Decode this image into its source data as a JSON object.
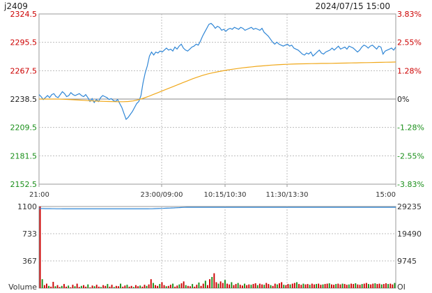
{
  "header": {
    "symbol": "j2409",
    "datetime": "2024/07/15 15:00"
  },
  "colors": {
    "up": "#cc0000",
    "down": "#1a8f1a",
    "price_line": "#2f86d6",
    "avg_line": "#f0a81a",
    "oi_line": "#2f86d6",
    "grid": "#bcbcbc",
    "frame": "#9a9a9a",
    "text": "#333333"
  },
  "chart_data": [
    {
      "type": "line",
      "name": "intraday price",
      "x_ticks": [
        "21:00",
        "23:00/09:00",
        "10:15/10:30",
        "11:30/13:30",
        "15:00"
      ],
      "y_ticks_left": [
        "2324.5",
        "2295.5",
        "2267.5",
        "2238.5",
        "2209.5",
        "2181.5",
        "2152.5"
      ],
      "y_ticks_right": [
        "3.83%",
        "2.55%",
        "1.28%",
        "0%",
        "-1.28%",
        "-2.55%",
        "-3.83%"
      ],
      "ylim": [
        2152.5,
        2324.5
      ],
      "reference_price": 2238.5,
      "series": [
        {
          "values": [
            2243,
            2241,
            2238,
            2240,
            2242,
            2240,
            2243,
            2244,
            2241,
            2240,
            2243,
            2246,
            2244,
            2241,
            2242,
            2245,
            2243,
            2242,
            2243,
            2244,
            2242,
            2241,
            2243,
            2240,
            2236,
            2239,
            2235,
            2238,
            2236,
            2240,
            2242,
            2241,
            2240,
            2238,
            2239,
            2237,
            2236,
            2238,
            2234,
            2230,
            2224,
            2218,
            2220,
            2223,
            2226,
            2230,
            2234,
            2236,
            2242,
            2255,
            2265,
            2272,
            2282,
            2286,
            2283,
            2286,
            2285,
            2287,
            2286,
            2288,
            2290,
            2288,
            2289,
            2287,
            2291,
            2289,
            2292,
            2294,
            2290,
            2288,
            2287,
            2289,
            2291,
            2292,
            2294,
            2293,
            2297,
            2302,
            2306,
            2310,
            2314,
            2315,
            2313,
            2310,
            2312,
            2311,
            2308,
            2309,
            2307,
            2309,
            2310,
            2309,
            2311,
            2310,
            2309,
            2311,
            2310,
            2308,
            2309,
            2310,
            2311,
            2309,
            2310,
            2309,
            2308,
            2310,
            2306,
            2304,
            2302,
            2299,
            2296,
            2294,
            2296,
            2294,
            2293,
            2292,
            2293,
            2294,
            2292,
            2293,
            2290,
            2289,
            2288,
            2286,
            2284,
            2283,
            2285,
            2284,
            2286,
            2282,
            2284,
            2286,
            2288,
            2285,
            2284,
            2286,
            2287,
            2288,
            2290,
            2288,
            2290,
            2292,
            2289,
            2290,
            2291,
            2289,
            2292,
            2291,
            2290,
            2288,
            2286,
            2288,
            2291,
            2293,
            2292,
            2290,
            2292,
            2293,
            2291,
            2289,
            2292,
            2291,
            2284,
            2287,
            2288,
            2289,
            2290,
            2288,
            2291
          ]
        },
        {
          "values": [
            2238.5,
            2238.5,
            2238.5,
            2238.5,
            2238.5,
            2238.3,
            2238.1,
            2237.8,
            2237.5,
            2237.2,
            2236.9,
            2236.6,
            2236.4,
            2236.2,
            2236.0,
            2235.9,
            2235.8,
            2235.8,
            2236.0,
            2236.6,
            2237.7,
            2239.2,
            2241.0,
            2243.0,
            2245.0,
            2247.0,
            2249.0,
            2251.0,
            2253.0,
            2255.0,
            2257.0,
            2259.0,
            2260.8,
            2262.4,
            2263.8,
            2265.0,
            2266.0,
            2267.0,
            2267.8,
            2268.6,
            2269.3,
            2270.0,
            2270.6,
            2271.1,
            2271.6,
            2272.0,
            2272.4,
            2272.8,
            2273.1,
            2273.4,
            2273.6,
            2273.8,
            2274.0,
            2274.1,
            2274.2,
            2274.3,
            2274.4,
            2274.5,
            2274.5,
            2274.6,
            2274.7,
            2274.8,
            2274.9,
            2275.0,
            2275.1,
            2275.2,
            2275.3,
            2275.4,
            2275.5,
            2275.6,
            2275.7,
            2275.8,
            2275.9
          ]
        }
      ]
    },
    {
      "type": "bar",
      "name": "Volume",
      "label_left": "Volume",
      "label_right": "OI",
      "y_ticks_left": [
        "1100",
        "733",
        "367"
      ],
      "y_ticks_right": [
        "29235",
        "19490",
        "9745"
      ],
      "ylim": [
        0,
        1100
      ],
      "volume": [
        1100,
        120,
        40,
        60,
        30,
        20,
        85,
        25,
        40,
        15,
        30,
        55,
        20,
        35,
        10,
        45,
        25,
        60,
        15,
        30,
        40,
        20,
        50,
        10,
        35,
        25,
        45,
        20,
        15,
        40,
        30,
        55,
        20,
        45,
        15,
        30,
        25,
        60,
        20,
        35,
        45,
        20,
        30,
        15,
        40,
        25,
        35,
        20,
        45,
        30,
        50,
        120,
        70,
        40,
        30,
        55,
        80,
        40,
        25,
        30,
        45,
        60,
        20,
        35,
        50,
        65,
        90,
        40,
        30,
        25,
        55,
        20,
        45,
        75,
        30,
        60,
        100,
        40,
        120,
        150,
        200,
        80,
        60,
        90,
        70,
        110,
        60,
        50,
        80,
        40,
        55,
        70,
        45,
        35,
        60,
        40,
        50,
        45,
        55,
        65,
        40,
        60,
        50,
        45,
        70,
        55,
        40,
        30,
        60,
        50,
        65,
        80,
        45,
        40,
        55,
        50,
        60,
        70,
        80,
        55,
        45,
        60,
        50,
        55,
        45,
        60,
        50,
        55,
        60,
        45,
        50,
        55,
        60,
        65,
        50,
        45,
        55,
        60,
        50,
        60,
        55,
        45,
        50,
        60,
        55,
        65,
        50,
        45,
        55,
        60,
        70,
        55,
        50,
        60,
        65,
        55,
        60,
        50,
        55,
        65,
        55,
        60,
        50,
        70
      ],
      "open_interest": [
        28550,
        28510,
        28480,
        28470,
        28460,
        28450,
        28440,
        28430,
        28420,
        28410,
        28400,
        28395,
        28390,
        28385,
        28380,
        28380,
        28380,
        28380,
        28380,
        28380,
        28380,
        28380,
        28380,
        28380,
        28380,
        28380,
        28380,
        28380,
        28380,
        28380,
        28380,
        28380,
        28380,
        28380,
        28380,
        28380,
        28380,
        28380,
        28380,
        28380,
        28380,
        28380,
        28380,
        28380,
        28380,
        28380,
        28380,
        28380,
        28380,
        28380,
        28380,
        28400,
        28420,
        28450,
        28480,
        28510,
        28540,
        28570,
        28600,
        28630,
        28660,
        28700,
        28740,
        28780,
        28820,
        28860,
        28900,
        28930,
        28950,
        28960,
        28960,
        28960,
        28960,
        28960,
        28960,
        28960,
        28960,
        28960,
        28960,
        28960,
        28960,
        28960,
        28960,
        28960,
        28960,
        28960,
        28960,
        28960,
        28960,
        28960,
        28960,
        28960,
        28960,
        28960,
        28960,
        28960,
        28960,
        28960,
        28960,
        28960,
        28960,
        28960,
        28960,
        28960,
        28960,
        28960,
        28960,
        28960,
        28960,
        28960,
        28960,
        28960,
        28960,
        28960,
        28960,
        28960,
        28960,
        28960,
        28960,
        28960,
        28960,
        28960,
        28960,
        28960,
        28960,
        28960,
        28960,
        28960,
        28960,
        28960,
        28960,
        28960,
        28960,
        28960,
        28960,
        28960,
        28960,
        28960,
        28960,
        28960,
        28960,
        28960,
        28960,
        28960,
        28960,
        28960,
        28960,
        28960,
        28960,
        28960,
        28960,
        28960,
        28960,
        28960,
        28960,
        28960,
        28960,
        28960,
        28960,
        28960,
        28960,
        28960,
        28960,
        28960,
        28960
      ],
      "oi_ylim": [
        0,
        29235
      ]
    }
  ]
}
